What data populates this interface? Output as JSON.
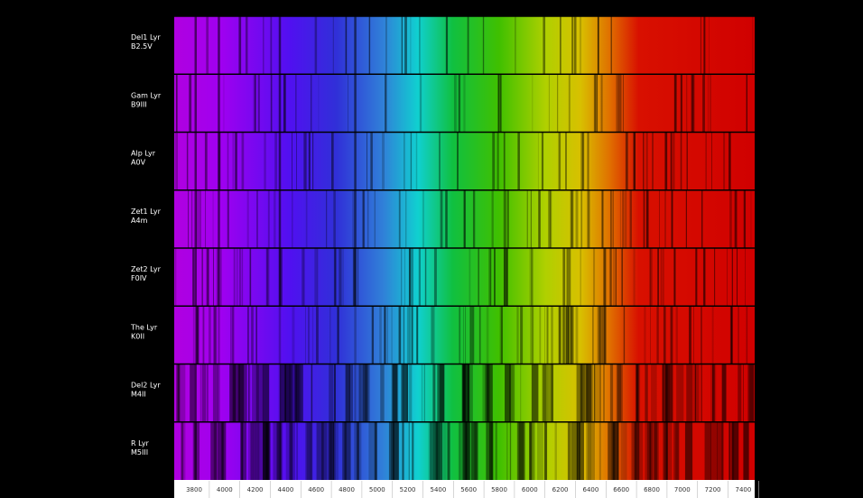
{
  "stars": [
    {
      "name": "Del1 Lyr",
      "class": "B2.5V"
    },
    {
      "name": "Gam Lyr",
      "class": "B9III"
    },
    {
      "name": "Alp Lyr",
      "class": "A0V"
    },
    {
      "name": "Zet1 Lyr",
      "class": "A4m"
    },
    {
      "name": "Zet2 Lyr",
      "class": "F0IV"
    },
    {
      "name": "The Lyr",
      "class": "K0II"
    },
    {
      "name": "Del2 Lyr",
      "class": "M4II"
    },
    {
      "name": "R Lyr",
      "class": "M5III"
    }
  ],
  "axis": {
    "ticks": [
      3800,
      4000,
      4200,
      4400,
      4600,
      4800,
      5000,
      5200,
      5400,
      5600,
      5800,
      6000,
      6200,
      6400,
      6600,
      6800,
      7000,
      7200,
      7400
    ]
  }
}
